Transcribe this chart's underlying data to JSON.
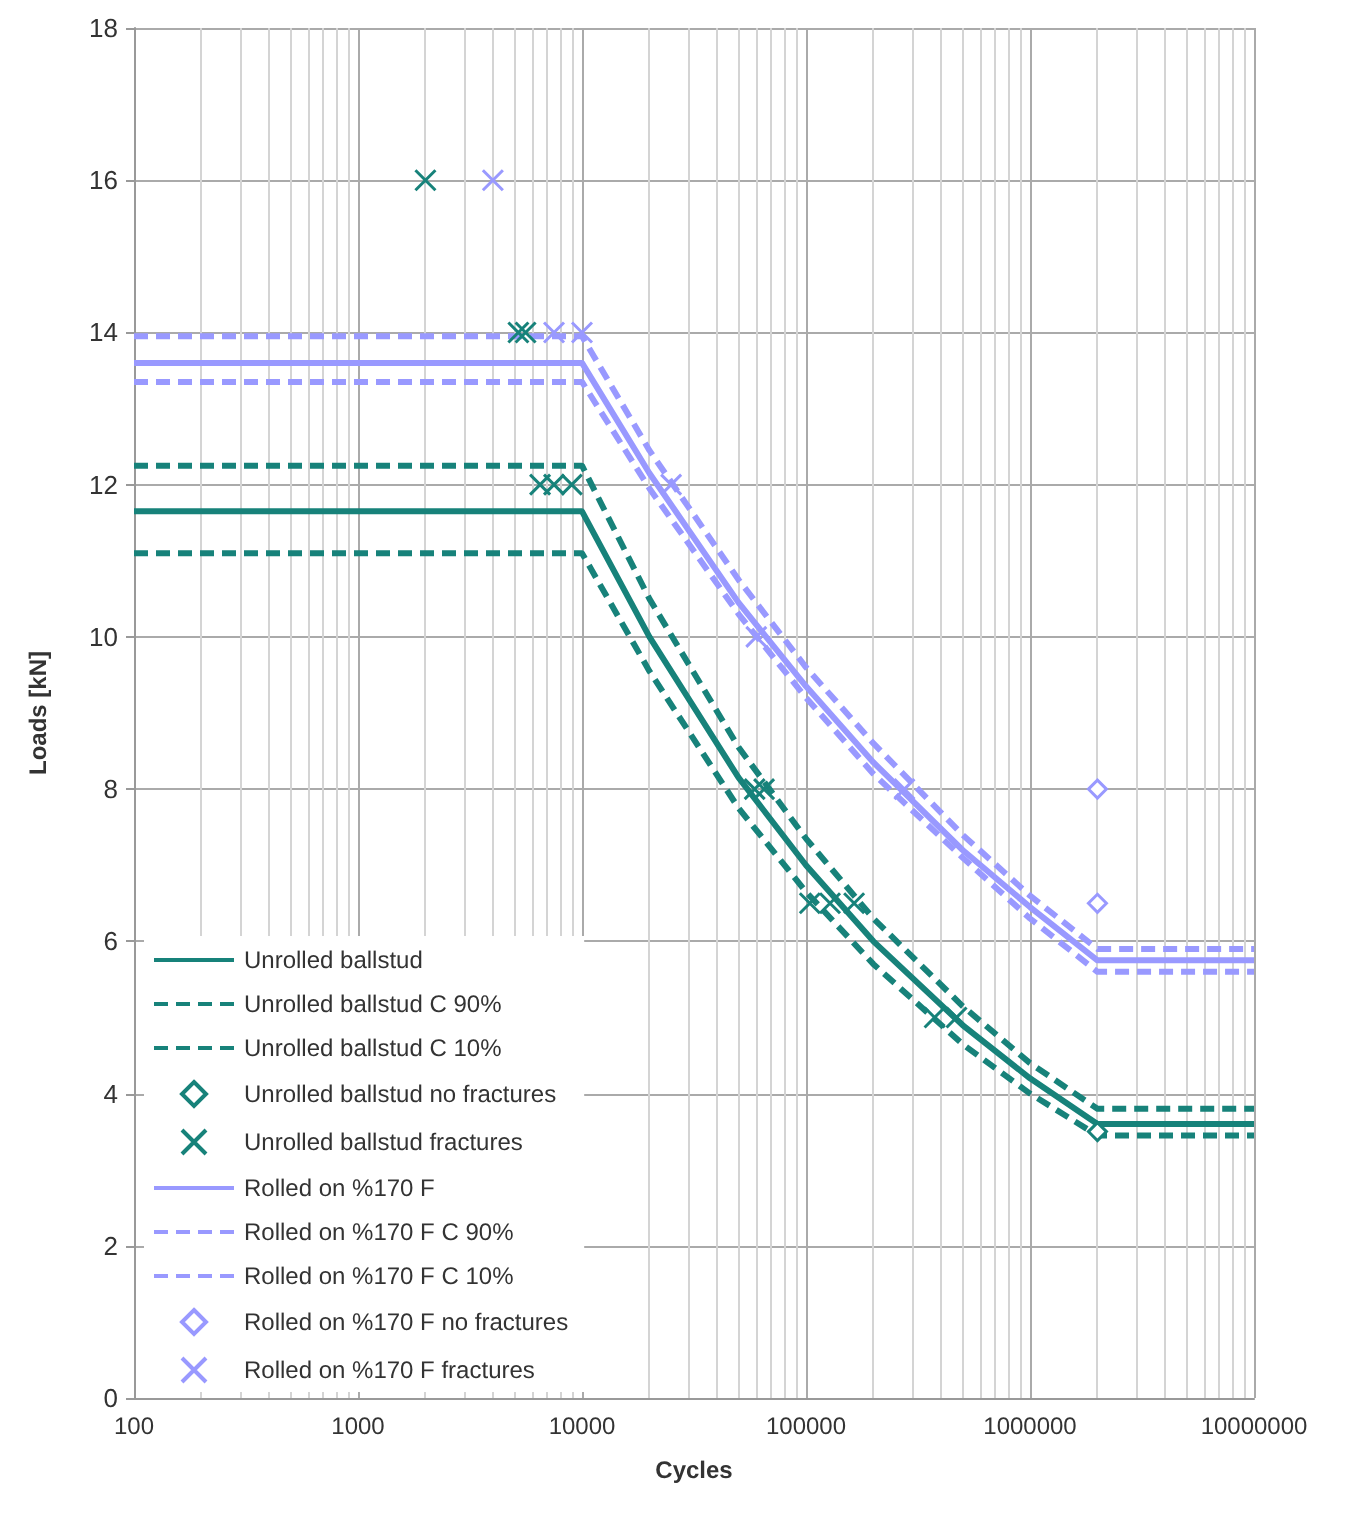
{
  "chart_data": {
    "type": "line",
    "xlabel": "Cycles",
    "ylabel": "Loads [kN]",
    "log": "x",
    "xlim": [
      100,
      10000000
    ],
    "xticks": [
      {
        "value": 100,
        "label": "100"
      },
      {
        "value": 1000,
        "label": "1000"
      },
      {
        "value": 10000,
        "label": "10000"
      },
      {
        "value": 100000,
        "label": "100000"
      },
      {
        "value": 1000000,
        "label": "1000000"
      },
      {
        "value": 10000000,
        "label": "10000000"
      }
    ],
    "ylim": [
      0,
      18
    ],
    "yticks": [
      0,
      2,
      4,
      6,
      8,
      10,
      12,
      14,
      16,
      18
    ],
    "grid": true,
    "legend": "bottom left",
    "series": [
      {
        "name": "Unrolled ballstud",
        "color": "#17827a",
        "line_style": "solid",
        "marker": "none",
        "x": [
          100,
          10000,
          20000,
          50000,
          100000,
          200000,
          500000,
          1000000,
          2000000,
          10000000
        ],
        "values": [
          11.65,
          11.65,
          10.0,
          8.15,
          7.0,
          6.0,
          4.9,
          4.2,
          3.6,
          3.6
        ]
      },
      {
        "name": "Unrolled ballstud C 90%",
        "color": "#17827a",
        "line_style": "dashed",
        "marker": "none",
        "x": [
          100,
          10000,
          20000,
          50000,
          100000,
          200000,
          500000,
          1000000,
          2000000,
          10000000
        ],
        "values": [
          12.25,
          12.25,
          10.5,
          8.55,
          7.35,
          6.3,
          5.15,
          4.4,
          3.8,
          3.8
        ]
      },
      {
        "name": "Unrolled ballstud C 10%",
        "color": "#17827a",
        "line_style": "dashed",
        "marker": "none",
        "x": [
          100,
          10000,
          20000,
          50000,
          100000,
          200000,
          500000,
          1000000,
          2000000,
          10000000
        ],
        "values": [
          11.1,
          11.1,
          9.55,
          7.75,
          6.65,
          5.7,
          4.65,
          4.0,
          3.45,
          3.45
        ]
      },
      {
        "name": "Unrolled ballstud no fractures",
        "type": "scatter",
        "color": "#17827a",
        "marker": "diamond",
        "x": [
          2000000
        ],
        "values": [
          3.5
        ]
      },
      {
        "name": "Unrolled ballstud fractures",
        "type": "scatter",
        "color": "#17827a",
        "marker": "cross",
        "x": [
          2000,
          5200,
          5600,
          6500,
          7500,
          9000,
          59000,
          65000,
          104000,
          128000,
          164000,
          375000,
          470000
        ],
        "values": [
          16,
          14,
          14,
          12,
          12,
          12,
          8,
          8,
          6.5,
          6.5,
          6.5,
          5,
          5
        ]
      },
      {
        "name": "Rolled on %170 F",
        "color": "#9999ff",
        "line_style": "solid",
        "marker": "none",
        "x": [
          100,
          10000,
          20000,
          50000,
          100000,
          200000,
          500000,
          1000000,
          2000000,
          10000000
        ],
        "values": [
          13.6,
          13.6,
          12.15,
          10.45,
          9.35,
          8.35,
          7.2,
          6.45,
          5.75,
          5.75
        ]
      },
      {
        "name": "Rolled on %170 F C 90%",
        "color": "#9999ff",
        "line_style": "dashed",
        "marker": "none",
        "x": [
          100,
          10000,
          20000,
          50000,
          100000,
          200000,
          500000,
          1000000,
          2000000,
          10000000
        ],
        "values": [
          13.95,
          13.95,
          12.45,
          10.75,
          9.6,
          8.6,
          7.4,
          6.6,
          5.9,
          5.9
        ]
      },
      {
        "name": "Rolled on %170 F C 10%",
        "color": "#9999ff",
        "line_style": "dashed",
        "marker": "none",
        "x": [
          100,
          10000,
          20000,
          50000,
          100000,
          200000,
          500000,
          1000000,
          2000000,
          10000000
        ],
        "values": [
          13.35,
          13.35,
          11.95,
          10.3,
          9.2,
          8.2,
          7.1,
          6.3,
          5.6,
          5.6
        ]
      },
      {
        "name": "Rolled on %170 F no fractures",
        "type": "scatter",
        "color": "#9999ff",
        "marker": "diamond",
        "x": [
          2000000,
          2000000
        ],
        "values": [
          8,
          6.5
        ]
      },
      {
        "name": "Rolled on %170 F fractures",
        "type": "scatter",
        "color": "#9999ff",
        "marker": "cross",
        "x": [
          4000,
          7500,
          10000,
          25000,
          60000,
          275000
        ],
        "values": [
          16,
          14,
          14,
          12,
          10,
          8
        ]
      }
    ]
  }
}
